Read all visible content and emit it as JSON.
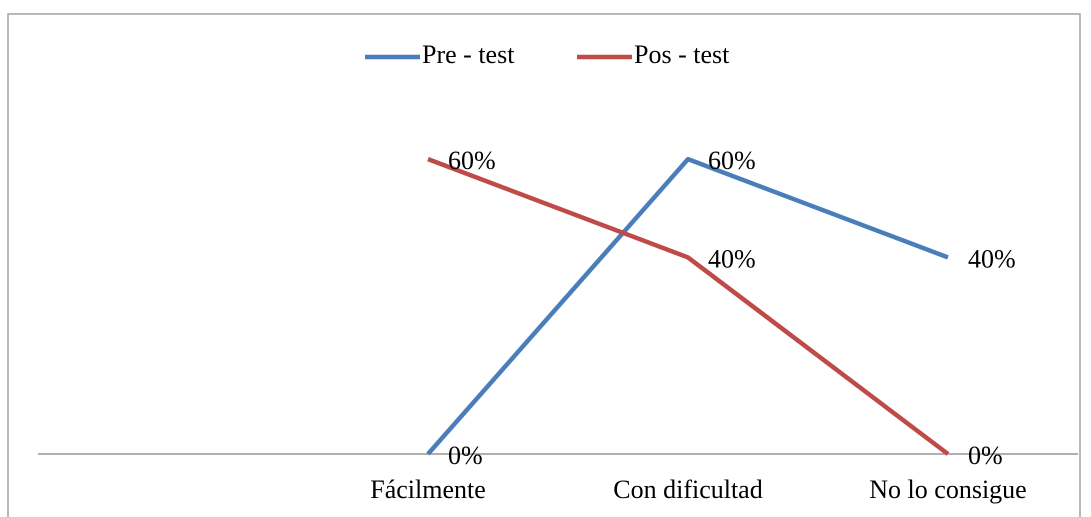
{
  "chart_data": {
    "type": "line",
    "categories": [
      null,
      "Fácilmente",
      "Con dificultad",
      "No lo consigue"
    ],
    "series": [
      {
        "name": "Pre - test",
        "color": "#4a7ebb",
        "values": [
          null,
          0,
          60,
          40
        ],
        "value_labels": [
          null,
          "0%",
          "60%",
          "40%"
        ]
      },
      {
        "name": "Pos - test",
        "color": "#be4b48",
        "values": [
          null,
          60,
          40,
          0
        ],
        "value_labels": [
          null,
          "60%",
          "40%",
          "0%"
        ]
      }
    ],
    "ylim": [
      0,
      70
    ],
    "legend": "top"
  }
}
